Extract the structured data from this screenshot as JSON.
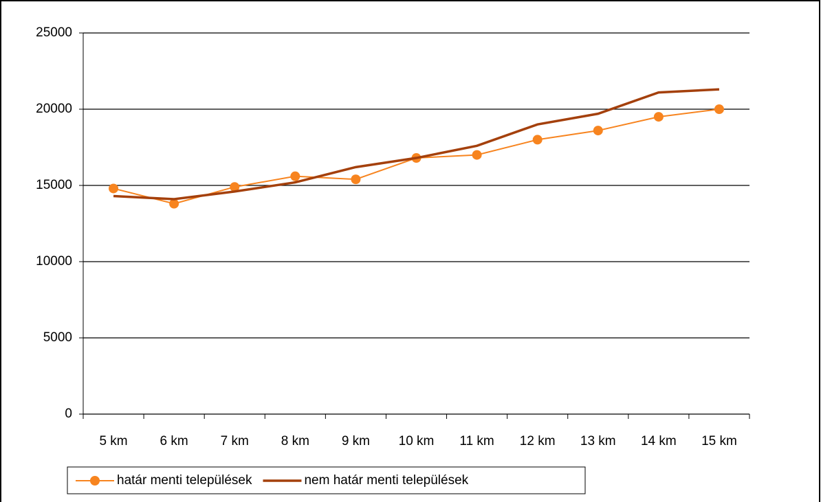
{
  "chart_data": {
    "type": "line",
    "categories": [
      "5 km",
      "6 km",
      "7 km",
      "8 km",
      "9 km",
      "10 km",
      "11 km",
      "12 km",
      "13 km",
      "14 km",
      "15 km"
    ],
    "series": [
      {
        "name": "határ menti települések",
        "color": "#f7841f",
        "markers": true,
        "values": [
          14800,
          13800,
          14900,
          15600,
          15400,
          16800,
          17000,
          18000,
          18600,
          19500,
          20000
        ]
      },
      {
        "name": "nem határ menti települések",
        "color": "#a4400c",
        "markers": false,
        "values": [
          14300,
          14100,
          14600,
          15200,
          16200,
          16800,
          17600,
          19000,
          19700,
          21100,
          21300
        ]
      }
    ],
    "ylim": [
      0,
      25000
    ],
    "yticks": [
      0,
      5000,
      10000,
      15000,
      20000,
      25000
    ],
    "grid": true,
    "legend": "bottom"
  }
}
